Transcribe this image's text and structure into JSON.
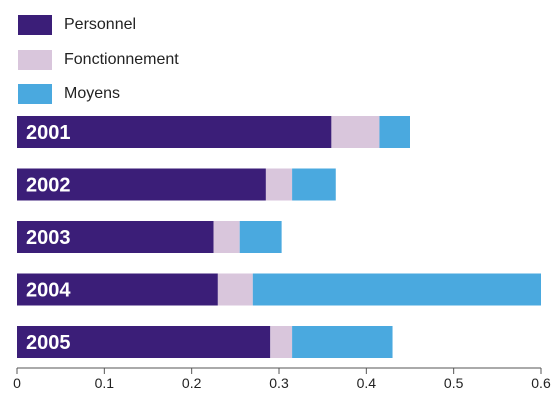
{
  "chart_data": {
    "type": "bar",
    "orientation": "horizontal",
    "stacked": true,
    "categories": [
      "2001",
      "2002",
      "2003",
      "2004",
      "2005"
    ],
    "series": [
      {
        "name": "Personnel",
        "color": "#3b1e78",
        "values": [
          0.36,
          0.285,
          0.225,
          0.23,
          0.29
        ]
      },
      {
        "name": "Fonctionnement",
        "color": "#d9c6dc",
        "values": [
          0.055,
          0.03,
          0.03,
          0.04,
          0.025
        ]
      },
      {
        "name": "Moyens",
        "color": "#4aa9df",
        "values": [
          0.035,
          0.05,
          0.048,
          0.33,
          0.115
        ]
      }
    ],
    "xlim": [
      0,
      0.6
    ],
    "xticks": [
      "0",
      "0.1",
      "0.2",
      "0.3",
      "0.4",
      "0.5",
      "0.6"
    ],
    "title": "",
    "xlabel": "",
    "ylabel": "",
    "grid": false,
    "legend_position": "top-left"
  }
}
